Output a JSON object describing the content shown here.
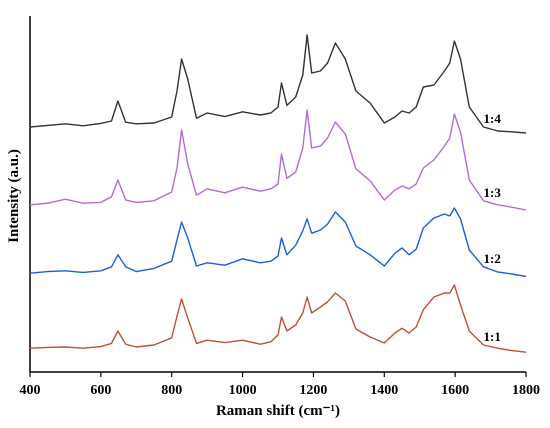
{
  "chart_data": {
    "type": "line",
    "xlabel": "Raman shift (cm⁻¹)",
    "ylabel": "Intensity (a.u.)",
    "xlim": [
      400,
      1800
    ],
    "x_ticks": [
      "400",
      "600",
      "800",
      "1000",
      "1200",
      "1400",
      "1600",
      "1800"
    ],
    "y_ticks_shown": false,
    "grid": false,
    "legend": "inline labels at right end of each trace",
    "x": [
      400,
      450,
      500,
      550,
      600,
      630,
      648,
      670,
      700,
      750,
      800,
      815,
      828,
      845,
      870,
      900,
      950,
      1000,
      1050,
      1080,
      1100,
      1110,
      1125,
      1150,
      1170,
      1182,
      1195,
      1220,
      1240,
      1262,
      1290,
      1320,
      1360,
      1400,
      1430,
      1450,
      1470,
      1490,
      1510,
      1540,
      1570,
      1585,
      1598,
      1615,
      1640,
      1680,
      1720,
      1760,
      1800
    ],
    "series": [
      {
        "name": "1:4",
        "color": "#333333",
        "values": [
          20,
          24,
          28,
          23,
          29,
          35,
          85,
          32,
          28,
          30,
          45,
          110,
          190,
          140,
          42,
          55,
          46,
          58,
          50,
          55,
          70,
          130,
          74,
          95,
          150,
          250,
          155,
          160,
          180,
          230,
          190,
          110,
          80,
          30,
          45,
          60,
          55,
          70,
          120,
          125,
          160,
          180,
          235,
          190,
          70,
          20,
          10,
          8,
          5
        ]
      },
      {
        "name": "1:3",
        "color": "#b36ad9",
        "values": [
          18,
          22,
          32,
          22,
          24,
          38,
          80,
          30,
          24,
          28,
          50,
          110,
          205,
          120,
          42,
          58,
          48,
          62,
          52,
          58,
          70,
          145,
          84,
          100,
          160,
          255,
          160,
          165,
          185,
          225,
          195,
          108,
          78,
          30,
          55,
          65,
          58,
          70,
          110,
          130,
          165,
          185,
          245,
          200,
          80,
          28,
          18,
          12,
          5
        ]
      },
      {
        "name": "1:2",
        "color": "#1a5fd9",
        "values": [
          12,
          16,
          18,
          14,
          18,
          28,
          58,
          28,
          16,
          24,
          42,
          95,
          140,
          100,
          30,
          38,
          32,
          48,
          38,
          42,
          55,
          100,
          58,
          82,
          118,
          148,
          112,
          120,
          135,
          165,
          140,
          80,
          58,
          30,
          62,
          75,
          58,
          72,
          125,
          150,
          160,
          155,
          175,
          148,
          70,
          28,
          15,
          10,
          4
        ]
      },
      {
        "name": "1:1",
        "color": "#c0503a",
        "values": [
          12,
          14,
          15,
          12,
          16,
          24,
          55,
          22,
          15,
          20,
          38,
          92,
          135,
          88,
          24,
          32,
          26,
          32,
          22,
          28,
          45,
          90,
          55,
          70,
          100,
          140,
          100,
          115,
          128,
          150,
          130,
          60,
          40,
          25,
          50,
          62,
          50,
          65,
          108,
          140,
          150,
          150,
          170,
          120,
          55,
          20,
          12,
          6,
          2
        ]
      }
    ]
  }
}
